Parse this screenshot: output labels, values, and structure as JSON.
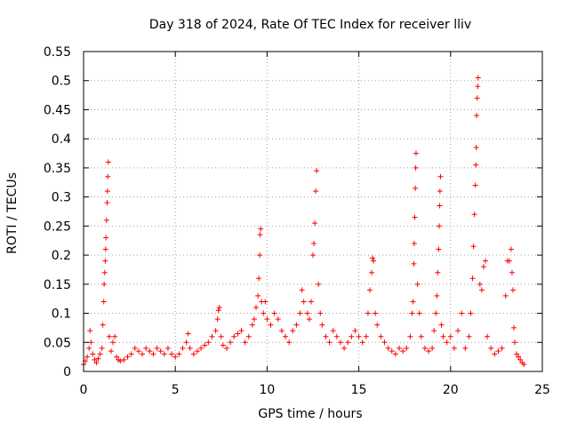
{
  "chart_data": {
    "type": "scatter",
    "title": "Day 318 of 2024, Rate Of TEC Index for receiver lliv",
    "xlabel": "GPS time / hours",
    "ylabel": "ROTI / TECUs",
    "xlim": [
      0,
      25
    ],
    "ylim": [
      0,
      0.55
    ],
    "x_ticks": [
      0,
      5,
      10,
      15,
      20,
      25
    ],
    "x_tick_labels": [
      "0",
      "5",
      "10",
      "15",
      "20",
      "25"
    ],
    "y_ticks": [
      0,
      0.05,
      0.1,
      0.15,
      0.2,
      0.25,
      0.3,
      0.35,
      0.4,
      0.45,
      0.5,
      0.55
    ],
    "y_tick_labels": [
      "0",
      "0.05",
      "0.1",
      "0.15",
      "0.2",
      "0.25",
      "0.3",
      "0.35",
      "0.4",
      "0.45",
      "0.5",
      "0.55"
    ],
    "grid": true,
    "marker": "+",
    "series": [
      {
        "name": "ROTI",
        "color": "#ff0000",
        "points": [
          [
            0.0,
            0.012
          ],
          [
            0.1,
            0.018
          ],
          [
            0.2,
            0.025
          ],
          [
            0.3,
            0.04
          ],
          [
            0.35,
            0.07
          ],
          [
            0.4,
            0.05
          ],
          [
            0.5,
            0.03
          ],
          [
            0.6,
            0.02
          ],
          [
            0.7,
            0.015
          ],
          [
            0.8,
            0.022
          ],
          [
            0.9,
            0.03
          ],
          [
            1.0,
            0.04
          ],
          [
            1.05,
            0.08
          ],
          [
            1.1,
            0.12
          ],
          [
            1.12,
            0.15
          ],
          [
            1.15,
            0.17
          ],
          [
            1.18,
            0.19
          ],
          [
            1.2,
            0.21
          ],
          [
            1.22,
            0.23
          ],
          [
            1.25,
            0.26
          ],
          [
            1.28,
            0.29
          ],
          [
            1.3,
            0.31
          ],
          [
            1.32,
            0.335
          ],
          [
            1.35,
            0.36
          ],
          [
            1.4,
            0.06
          ],
          [
            1.5,
            0.035
          ],
          [
            1.6,
            0.05
          ],
          [
            1.7,
            0.06
          ],
          [
            1.8,
            0.025
          ],
          [
            1.9,
            0.02
          ],
          [
            2.0,
            0.018
          ],
          [
            2.2,
            0.02
          ],
          [
            2.4,
            0.025
          ],
          [
            2.6,
            0.03
          ],
          [
            2.8,
            0.04
          ],
          [
            3.0,
            0.035
          ],
          [
            3.2,
            0.03
          ],
          [
            3.4,
            0.04
          ],
          [
            3.6,
            0.035
          ],
          [
            3.8,
            0.03
          ],
          [
            4.0,
            0.04
          ],
          [
            4.2,
            0.035
          ],
          [
            4.4,
            0.03
          ],
          [
            4.6,
            0.04
          ],
          [
            4.8,
            0.03
          ],
          [
            5.0,
            0.025
          ],
          [
            5.2,
            0.03
          ],
          [
            5.4,
            0.04
          ],
          [
            5.6,
            0.05
          ],
          [
            5.7,
            0.065
          ],
          [
            5.8,
            0.04
          ],
          [
            6.0,
            0.03
          ],
          [
            6.2,
            0.035
          ],
          [
            6.4,
            0.04
          ],
          [
            6.6,
            0.045
          ],
          [
            6.8,
            0.05
          ],
          [
            7.0,
            0.06
          ],
          [
            7.2,
            0.07
          ],
          [
            7.3,
            0.09
          ],
          [
            7.35,
            0.105
          ],
          [
            7.4,
            0.11
          ],
          [
            7.5,
            0.06
          ],
          [
            7.6,
            0.045
          ],
          [
            7.8,
            0.04
          ],
          [
            8.0,
            0.05
          ],
          [
            8.2,
            0.06
          ],
          [
            8.4,
            0.065
          ],
          [
            8.6,
            0.07
          ],
          [
            8.8,
            0.05
          ],
          [
            9.0,
            0.06
          ],
          [
            9.2,
            0.08
          ],
          [
            9.3,
            0.09
          ],
          [
            9.4,
            0.11
          ],
          [
            9.5,
            0.13
          ],
          [
            9.55,
            0.16
          ],
          [
            9.6,
            0.2
          ],
          [
            9.62,
            0.235
          ],
          [
            9.65,
            0.245
          ],
          [
            9.7,
            0.12
          ],
          [
            9.8,
            0.1
          ],
          [
            9.9,
            0.12
          ],
          [
            10.0,
            0.09
          ],
          [
            10.2,
            0.08
          ],
          [
            10.4,
            0.1
          ],
          [
            10.6,
            0.09
          ],
          [
            10.8,
            0.07
          ],
          [
            11.0,
            0.06
          ],
          [
            11.2,
            0.05
          ],
          [
            11.4,
            0.07
          ],
          [
            11.6,
            0.08
          ],
          [
            11.8,
            0.1
          ],
          [
            11.9,
            0.14
          ],
          [
            12.0,
            0.12
          ],
          [
            12.2,
            0.1
          ],
          [
            12.3,
            0.09
          ],
          [
            12.4,
            0.12
          ],
          [
            12.5,
            0.2
          ],
          [
            12.55,
            0.22
          ],
          [
            12.6,
            0.255
          ],
          [
            12.65,
            0.31
          ],
          [
            12.7,
            0.345
          ],
          [
            12.8,
            0.15
          ],
          [
            12.9,
            0.1
          ],
          [
            13.0,
            0.08
          ],
          [
            13.2,
            0.06
          ],
          [
            13.4,
            0.05
          ],
          [
            13.6,
            0.07
          ],
          [
            13.8,
            0.06
          ],
          [
            14.0,
            0.05
          ],
          [
            14.2,
            0.04
          ],
          [
            14.4,
            0.05
          ],
          [
            14.6,
            0.06
          ],
          [
            14.8,
            0.07
          ],
          [
            15.0,
            0.06
          ],
          [
            15.2,
            0.05
          ],
          [
            15.4,
            0.06
          ],
          [
            15.5,
            0.1
          ],
          [
            15.6,
            0.14
          ],
          [
            15.7,
            0.17
          ],
          [
            15.75,
            0.195
          ],
          [
            15.8,
            0.19
          ],
          [
            15.9,
            0.1
          ],
          [
            16.0,
            0.08
          ],
          [
            16.2,
            0.06
          ],
          [
            16.4,
            0.05
          ],
          [
            16.6,
            0.04
          ],
          [
            16.8,
            0.035
          ],
          [
            17.0,
            0.03
          ],
          [
            17.2,
            0.04
          ],
          [
            17.4,
            0.035
          ],
          [
            17.6,
            0.04
          ],
          [
            17.8,
            0.06
          ],
          [
            17.9,
            0.1
          ],
          [
            17.95,
            0.12
          ],
          [
            18.0,
            0.185
          ],
          [
            18.02,
            0.22
          ],
          [
            18.05,
            0.265
          ],
          [
            18.08,
            0.315
          ],
          [
            18.1,
            0.35
          ],
          [
            18.12,
            0.375
          ],
          [
            18.2,
            0.15
          ],
          [
            18.3,
            0.1
          ],
          [
            18.4,
            0.06
          ],
          [
            18.6,
            0.04
          ],
          [
            18.8,
            0.035
          ],
          [
            19.0,
            0.04
          ],
          [
            19.1,
            0.07
          ],
          [
            19.2,
            0.1
          ],
          [
            19.25,
            0.13
          ],
          [
            19.3,
            0.17
          ],
          [
            19.35,
            0.21
          ],
          [
            19.38,
            0.25
          ],
          [
            19.4,
            0.285
          ],
          [
            19.42,
            0.31
          ],
          [
            19.45,
            0.335
          ],
          [
            19.5,
            0.08
          ],
          [
            19.6,
            0.06
          ],
          [
            19.8,
            0.05
          ],
          [
            20.0,
            0.06
          ],
          [
            20.2,
            0.04
          ],
          [
            20.4,
            0.07
          ],
          [
            20.6,
            0.1
          ],
          [
            20.8,
            0.04
          ],
          [
            21.0,
            0.06
          ],
          [
            21.1,
            0.1
          ],
          [
            21.2,
            0.16
          ],
          [
            21.25,
            0.215
          ],
          [
            21.3,
            0.27
          ],
          [
            21.35,
            0.32
          ],
          [
            21.38,
            0.355
          ],
          [
            21.4,
            0.385
          ],
          [
            21.42,
            0.44
          ],
          [
            21.45,
            0.47
          ],
          [
            21.48,
            0.49
          ],
          [
            21.5,
            0.505
          ],
          [
            21.6,
            0.15
          ],
          [
            21.7,
            0.14
          ],
          [
            21.8,
            0.18
          ],
          [
            21.9,
            0.19
          ],
          [
            22.0,
            0.06
          ],
          [
            22.2,
            0.04
          ],
          [
            22.4,
            0.03
          ],
          [
            22.6,
            0.035
          ],
          [
            22.8,
            0.04
          ],
          [
            23.0,
            0.13
          ],
          [
            23.1,
            0.19
          ],
          [
            23.2,
            0.19
          ],
          [
            23.3,
            0.21
          ],
          [
            23.35,
            0.17
          ],
          [
            23.4,
            0.14
          ],
          [
            23.45,
            0.075
          ],
          [
            23.5,
            0.05
          ],
          [
            23.6,
            0.03
          ],
          [
            23.7,
            0.025
          ],
          [
            23.8,
            0.02
          ],
          [
            23.9,
            0.015
          ],
          [
            24.0,
            0.012
          ]
        ]
      }
    ]
  }
}
